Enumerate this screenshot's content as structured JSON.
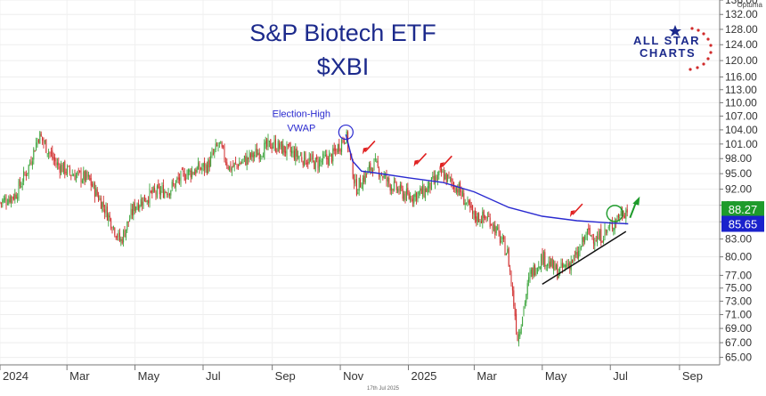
{
  "title": "S&P Biotech ETF",
  "subtitle": "$XBI",
  "logo": {
    "line1": "ALL STAR",
    "line2": "CHARTS"
  },
  "brand": "Optuma",
  "footer_date": "17th Jul 2025",
  "colors": {
    "title": "#1c2a8c",
    "up": "#3aa43a",
    "down": "#d02a2a",
    "vwap": "#2a2ad0",
    "last_price_box": "#1e9b2b",
    "vwap_box": "#1a22cc",
    "annotation_arrow": "#e02020",
    "breakout_arrow": "#1e9b2b",
    "trendline": "#111111"
  },
  "chart_data": {
    "type": "candlestick",
    "x_ticks": [
      "2024",
      "Mar",
      "May",
      "Jul",
      "Sep",
      "Nov",
      "2025",
      "Mar",
      "May",
      "Jul",
      "Sep"
    ],
    "y_ticks": [
      65.0,
      67.0,
      69.0,
      71.0,
      73.0,
      75.0,
      77.0,
      80.0,
      83.0,
      86.0,
      89.0,
      92.0,
      95.0,
      98.0,
      101.0,
      104.0,
      107.0,
      110.0,
      113.0,
      116.0,
      120.0,
      124.0,
      128.0,
      132.0,
      136.0
    ],
    "y_scale": "log",
    "ylim": [
      64,
      136
    ],
    "last_price": 88.27,
    "vwap_value": 85.65,
    "annotation_label": "Election-High\nVWAP",
    "price_path": [
      [
        "2024-01-01",
        89.5
      ],
      [
        "2024-01-15",
        91.0
      ],
      [
        "2024-01-26",
        96.0
      ],
      [
        "2024-02-05",
        103.0
      ],
      [
        "2024-02-20",
        97.0
      ],
      [
        "2024-03-05",
        95.0
      ],
      [
        "2024-03-20",
        94.0
      ],
      [
        "2024-04-05",
        88.0
      ],
      [
        "2024-04-18",
        82.5
      ],
      [
        "2024-05-01",
        89.0
      ],
      [
        "2024-05-15",
        91.0
      ],
      [
        "2024-06-01",
        92.0
      ],
      [
        "2024-06-15",
        95.0
      ],
      [
        "2024-07-05",
        96.5
      ],
      [
        "2024-07-15",
        101.0
      ],
      [
        "2024-07-25",
        96.0
      ],
      [
        "2024-08-10",
        98.0
      ],
      [
        "2024-09-01",
        101.0
      ],
      [
        "2024-09-20",
        99.0
      ],
      [
        "2024-10-10",
        97.0
      ],
      [
        "2024-10-25",
        98.5
      ],
      [
        "2024-11-06",
        103.0
      ],
      [
        "2024-11-15",
        92.0
      ],
      [
        "2024-12-01",
        97.0
      ],
      [
        "2024-12-15",
        93.0
      ],
      [
        "2025-01-01",
        90.5
      ],
      [
        "2025-01-15",
        91.5
      ],
      [
        "2025-01-31",
        95.0
      ],
      [
        "2025-02-15",
        92.0
      ],
      [
        "2025-02-28",
        87.0
      ],
      [
        "2025-03-15",
        86.5
      ],
      [
        "2025-03-31",
        80.5
      ],
      [
        "2025-04-09",
        67.5
      ],
      [
        "2025-04-20",
        77.0
      ],
      [
        "2025-05-01",
        80.0
      ],
      [
        "2025-05-15",
        77.5
      ],
      [
        "2025-06-01",
        80.0
      ],
      [
        "2025-06-10",
        84.0
      ],
      [
        "2025-06-20",
        83.0
      ],
      [
        "2025-07-01",
        85.0
      ],
      [
        "2025-07-10",
        87.5
      ],
      [
        "2025-07-17",
        88.27
      ]
    ],
    "vwap_path": [
      [
        "2024-11-06",
        103.0
      ],
      [
        "2024-11-12",
        97.5
      ],
      [
        "2024-11-20",
        95.5
      ],
      [
        "2024-12-01",
        95.2
      ],
      [
        "2025-01-01",
        94.2
      ],
      [
        "2025-02-01",
        93.3
      ],
      [
        "2025-03-01",
        91.5
      ],
      [
        "2025-04-01",
        88.6
      ],
      [
        "2025-05-01",
        87.0
      ],
      [
        "2025-06-01",
        86.2
      ],
      [
        "2025-07-01",
        85.8
      ],
      [
        "2025-07-17",
        85.65
      ]
    ],
    "trendline": [
      [
        "2025-05-01",
        75.6
      ],
      [
        "2025-07-15",
        84.3
      ]
    ],
    "annotations": {
      "red_arrows": [
        [
          "2024-11-28",
          98.5
        ],
        [
          "2025-01-13",
          96.0
        ],
        [
          "2025-02-05",
          95.5
        ],
        [
          "2025-06-02",
          86.5
        ]
      ],
      "election_high_circle": [
        "2024-11-06",
        103.5
      ],
      "breakout_circle": [
        "2025-07-05",
        87.5
      ],
      "breakout_arrow": [
        "2025-07-25",
        88.0
      ]
    }
  }
}
